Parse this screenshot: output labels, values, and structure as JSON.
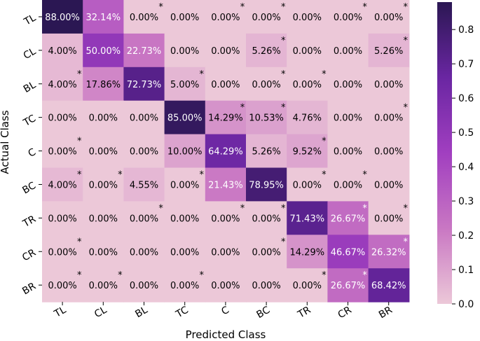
{
  "chart_data": {
    "type": "heatmap",
    "xlabel": "Predicted Class",
    "ylabel": "Actual Class",
    "x_categories": [
      "TL",
      "CL",
      "BL",
      "TC",
      "C",
      "BC",
      "TR",
      "CR",
      "BR"
    ],
    "y_categories": [
      "TL",
      "CL",
      "BL",
      "TC",
      "C",
      "BC",
      "TR",
      "CR",
      "BR"
    ],
    "values": [
      [
        0.88,
        0.3214,
        0.0,
        0.0,
        0.0,
        0.0,
        0.0,
        0.0,
        0.0
      ],
      [
        0.04,
        0.5,
        0.2273,
        0.0,
        0.0,
        0.0526,
        0.0,
        0.0,
        0.0526
      ],
      [
        0.04,
        0.1786,
        0.7273,
        0.05,
        0.0,
        0.0,
        0.0,
        0.0,
        0.0
      ],
      [
        0.0,
        0.0,
        0.0,
        0.85,
        0.1429,
        0.1053,
        0.0476,
        0.0,
        0.0
      ],
      [
        0.0,
        0.0,
        0.0,
        0.1,
        0.6429,
        0.0526,
        0.0952,
        0.0,
        0.0
      ],
      [
        0.04,
        0.0,
        0.0455,
        0.0,
        0.2143,
        0.7895,
        0.0,
        0.0,
        0.0
      ],
      [
        0.0,
        0.0,
        0.0,
        0.0,
        0.0,
        0.0,
        0.7143,
        0.2667,
        0.0
      ],
      [
        0.0,
        0.0,
        0.0,
        0.0,
        0.0,
        0.0,
        0.1429,
        0.4667,
        0.2632
      ],
      [
        0.0,
        0.0,
        0.0,
        0.0,
        0.0,
        0.0,
        0.0,
        0.2667,
        0.6842
      ]
    ],
    "cell_labels": [
      [
        "88.00%",
        "32.14%",
        "0.00%",
        "0.00%",
        "0.00%",
        "0.00%",
        "0.00%",
        "0.00%",
        "0.00%"
      ],
      [
        "4.00%",
        "50.00%",
        "22.73%",
        "0.00%",
        "0.00%",
        "5.26%",
        "0.00%",
        "0.00%",
        "5.26%"
      ],
      [
        "4.00%",
        "17.86%",
        "72.73%",
        "5.00%",
        "0.00%",
        "0.00%",
        "0.00%",
        "0.00%",
        "0.00%"
      ],
      [
        "0.00%",
        "0.00%",
        "0.00%",
        "85.00%",
        "14.29%",
        "10.53%",
        "4.76%",
        "0.00%",
        "0.00%"
      ],
      [
        "0.00%",
        "0.00%",
        "0.00%",
        "10.00%",
        "64.29%",
        "5.26%",
        "9.52%",
        "0.00%",
        "0.00%"
      ],
      [
        "4.00%",
        "0.00%",
        "4.55%",
        "0.00%",
        "21.43%",
        "78.95%",
        "0.00%",
        "0.00%",
        "0.00%"
      ],
      [
        "0.00%",
        "0.00%",
        "0.00%",
        "0.00%",
        "0.00%",
        "0.00%",
        "71.43%",
        "26.67%",
        "0.00%"
      ],
      [
        "0.00%",
        "0.00%",
        "0.00%",
        "0.00%",
        "0.00%",
        "0.00%",
        "14.29%",
        "46.67%",
        "26.32%"
      ],
      [
        "0.00%",
        "0.00%",
        "0.00%",
        "0.00%",
        "0.00%",
        "0.00%",
        "0.00%",
        "26.67%",
        "68.42%"
      ]
    ],
    "significance_marks": [
      [
        0,
        0,
        1,
        0,
        1,
        1,
        0,
        1,
        1
      ],
      [
        0,
        0,
        0,
        0,
        0,
        1,
        0,
        0,
        1
      ],
      [
        1,
        0,
        0,
        1,
        0,
        1,
        1,
        0,
        0
      ],
      [
        0,
        0,
        0,
        0,
        1,
        1,
        0,
        0,
        1
      ],
      [
        1,
        0,
        0,
        0,
        0,
        0,
        1,
        0,
        0
      ],
      [
        1,
        1,
        0,
        1,
        0,
        0,
        1,
        1,
        0
      ],
      [
        0,
        0,
        1,
        0,
        1,
        1,
        0,
        1,
        1
      ],
      [
        1,
        0,
        0,
        0,
        0,
        1,
        0,
        0,
        1
      ],
      [
        1,
        1,
        0,
        1,
        0,
        0,
        1,
        1,
        0
      ]
    ],
    "mark_symbol": "*",
    "colorbar": {
      "min": 0.0,
      "max": 0.88,
      "ticks": [
        0.0,
        0.1,
        0.2,
        0.3,
        0.4,
        0.5,
        0.6,
        0.7,
        0.8
      ],
      "tick_labels": [
        "0.0",
        "0.1",
        "0.2",
        "0.3",
        "0.4",
        "0.5",
        "0.6",
        "0.7",
        "0.8"
      ],
      "colors": [
        "#ecc8d8",
        "#c977c3",
        "#a13fc0",
        "#6a26a2",
        "#2b1753"
      ]
    },
    "text_color_dark": "#000000",
    "text_color_light": "#ffffff",
    "grid": false
  }
}
